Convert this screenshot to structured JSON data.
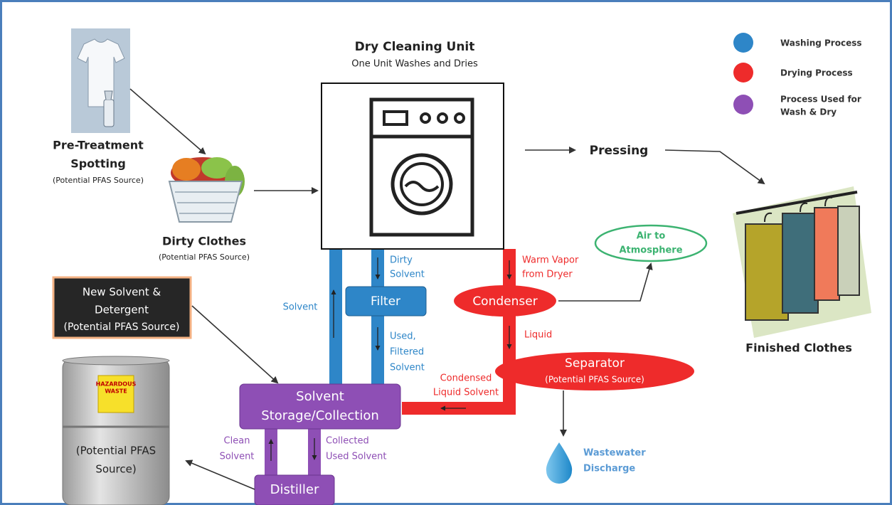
{
  "title": "Dry Cleaning Unit",
  "subtitle": "One Unit Washes and Dries",
  "legend": [
    {
      "lines": [
        "Washing Process"
      ],
      "color": "#2e86c8"
    },
    {
      "lines": [
        "Drying Process"
      ],
      "color": "#ee2b2b"
    },
    {
      "lines": [
        "Process Used for",
        "Wash & Dry"
      ],
      "color": "#8e4fb5"
    }
  ],
  "pretreatment": {
    "lines": [
      "Pre-Treatment",
      "Spotting"
    ],
    "note": "(Potential PFAS Source)"
  },
  "dirty_clothes": {
    "label": "Dirty Clothes",
    "note": "(Potential PFAS Source)"
  },
  "pressing": "Pressing",
  "finished_clothes": "Finished Clothes",
  "air": {
    "lines": [
      "Air to",
      "Atmosphere"
    ]
  },
  "condenser": "Condenser",
  "warm_vapor": {
    "lines": [
      "Warm Vapor",
      "from Dryer"
    ]
  },
  "dirty_solvent": {
    "lines": [
      "Dirty",
      "Solvent"
    ]
  },
  "filter": "Filter",
  "solvent": "Solvent",
  "used_filtered": {
    "lines": [
      "Used,",
      "Filtered",
      "Solvent"
    ]
  },
  "liquid": "Liquid",
  "separator": {
    "label": "Separator",
    "note": "(Potential PFAS Source)"
  },
  "condensed": {
    "lines": [
      "Condensed",
      "Liquid Solvent"
    ]
  },
  "new_solvent": {
    "lines": [
      "New Solvent &",
      "Detergent",
      "(Potential PFAS Source)"
    ]
  },
  "storage": {
    "lines": [
      "Solvent",
      "Storage/Collection"
    ]
  },
  "clean_solvent": {
    "lines": [
      "Clean",
      "Solvent"
    ]
  },
  "collected": {
    "lines": [
      "Collected",
      "Used Solvent"
    ]
  },
  "distiller": "Distiller",
  "wastewater": {
    "lines": [
      "Wastewater",
      "Discharge"
    ]
  },
  "barrel": {
    "sign": [
      "HAZARDOUS",
      "WASTE"
    ],
    "lines": [
      "(Potential PFAS",
      "Source)"
    ]
  }
}
